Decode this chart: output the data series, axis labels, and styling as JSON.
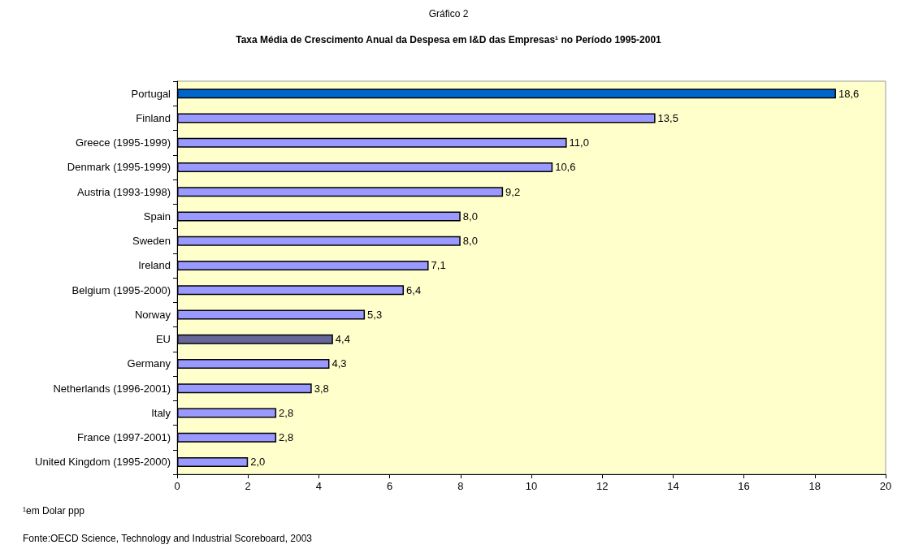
{
  "chart_data": {
    "type": "bar",
    "orientation": "horizontal",
    "title": "Gráfico 2",
    "subtitle": "Taxa Média de Crescimento Anual da Despesa em I&D das Empresas¹ no Período 1995-2001",
    "categories": [
      "Portugal",
      "Finland",
      "Greece (1995-1999)",
      "Denmark (1995-1999)",
      "Austria (1993-1998)",
      "Spain",
      "Sweden",
      "Ireland",
      "Belgium (1995-2000)",
      "Norway",
      "EU",
      "Germany",
      "Netherlands (1996-2001)",
      "Italy",
      "France (1997-2001)",
      "United Kingdom (1995-2000)"
    ],
    "values": [
      18.6,
      13.5,
      11.0,
      10.6,
      9.2,
      8.0,
      8.0,
      7.1,
      6.4,
      5.3,
      4.4,
      4.3,
      3.8,
      2.8,
      2.8,
      2.0
    ],
    "value_labels": [
      "18,6",
      "13,5",
      "11,0",
      "10,6",
      "9,2",
      "8,0",
      "8,0",
      "7,1",
      "6,4",
      "5,3",
      "4,4",
      "4,3",
      "3,8",
      "2,8",
      "2,8",
      "2,0"
    ],
    "colors": [
      "#0066cc",
      "#9999ff",
      "#9999ff",
      "#9999ff",
      "#9999ff",
      "#9999ff",
      "#9999ff",
      "#9999ff",
      "#9999ff",
      "#9999ff",
      "#666699",
      "#9999ff",
      "#9999ff",
      "#9999ff",
      "#9999ff",
      "#9999ff"
    ],
    "xlim": [
      0,
      20
    ],
    "xticks": [
      0,
      2,
      4,
      6,
      8,
      10,
      12,
      14,
      16,
      18,
      20
    ],
    "grid": false,
    "annotations": [
      "¹em Dolar ppp",
      "Fonte:OECD Science, Technology and Industrial Scoreboard, 2003"
    ]
  }
}
